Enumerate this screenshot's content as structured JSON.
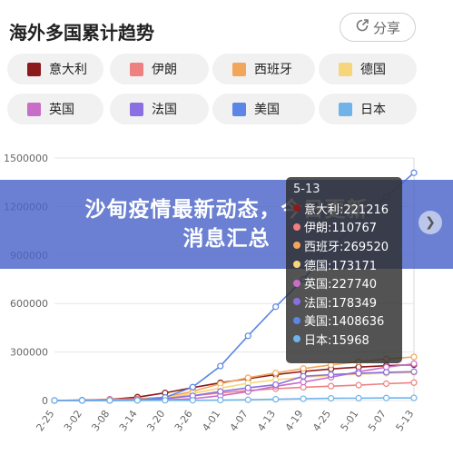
{
  "header": {
    "title": "海外多国累计趋势",
    "share_label": "分享",
    "share_icon": "share-icon"
  },
  "legend": [
    {
      "label": "意大利",
      "color": "#8b1a1a"
    },
    {
      "label": "伊朗",
      "color": "#ef8080"
    },
    {
      "label": "西班牙",
      "color": "#f2a65a"
    },
    {
      "label": "德国",
      "color": "#f7d57a"
    },
    {
      "label": "英国",
      "color": "#c86dc8"
    },
    {
      "label": "法国",
      "color": "#8a6fe0"
    },
    {
      "label": "美国",
      "color": "#5b86e5"
    },
    {
      "label": "日本",
      "color": "#6fb3ea"
    }
  ],
  "banner": {
    "line1": "沙甸疫情最新动态，今日更新",
    "line2": "消息汇总"
  },
  "tooltip": {
    "date": "5-13",
    "rows": [
      {
        "text": "意大利:221216",
        "color": "#8b1a1a"
      },
      {
        "text": "伊朗:110767",
        "color": "#ef8080"
      },
      {
        "text": "西班牙:269520",
        "color": "#f2a65a"
      },
      {
        "text": "德国:173171",
        "color": "#f7d57a"
      },
      {
        "text": "英国:227740",
        "color": "#c86dc8"
      },
      {
        "text": "法国:178349",
        "color": "#8a6fe0"
      },
      {
        "text": "美国:1408636",
        "color": "#5b86e5"
      },
      {
        "text": "日本:15968",
        "color": "#6fb3ea"
      }
    ]
  },
  "chart_data": {
    "type": "line",
    "title": "",
    "xlabel": "",
    "ylabel": "",
    "ylim": [
      0,
      1500000
    ],
    "yticks": [
      0,
      300000,
      600000,
      900000,
      1200000,
      1500000
    ],
    "ytick_labels": [
      "0",
      "300000",
      "600000",
      "900000",
      "1200000",
      "1500000"
    ],
    "categories": [
      "2-25",
      "3-02",
      "3-08",
      "3-14",
      "3-20",
      "3-26",
      "4-01",
      "4-07",
      "4-13",
      "4-19",
      "4-25",
      "5-01",
      "5-07",
      "5-13"
    ],
    "grid": true,
    "series": [
      {
        "name": "意大利",
        "color": "#8b1a1a",
        "values": [
          300,
          2000,
          7000,
          21000,
          47000,
          80000,
          110000,
          135000,
          160000,
          180000,
          195000,
          207000,
          215000,
          221216
        ]
      },
      {
        "name": "伊朗",
        "color": "#ef8080",
        "values": [
          100,
          1500,
          6000,
          12000,
          19000,
          29000,
          47000,
          62000,
          73000,
          82000,
          89000,
          95000,
          104000,
          110767
        ]
      },
      {
        "name": "西班牙",
        "color": "#f2a65a",
        "values": [
          10,
          100,
          600,
          6000,
          20000,
          57000,
          104000,
          141000,
          170000,
          198000,
          220000,
          240000,
          257000,
          269520
        ]
      },
      {
        "name": "德国",
        "color": "#f7d57a",
        "values": [
          20,
          150,
          900,
          4500,
          18000,
          44000,
          77000,
          107000,
          128000,
          143000,
          155000,
          163000,
          168000,
          173171
        ]
      },
      {
        "name": "英国",
        "color": "#c86dc8",
        "values": [
          10,
          40,
          270,
          1100,
          4000,
          11000,
          30000,
          55000,
          88000,
          114000,
          144000,
          178000,
          206000,
          227740
        ]
      },
      {
        "name": "法国",
        "color": "#8a6fe0",
        "values": [
          10,
          200,
          1200,
          4500,
          12000,
          29000,
          56000,
          78000,
          98000,
          150000,
          160000,
          168000,
          175000,
          178349
        ]
      },
      {
        "name": "美国",
        "color": "#5b86e5",
        "values": [
          50,
          100,
          500,
          2700,
          19000,
          83000,
          213000,
          400000,
          580000,
          750000,
          950000,
          1100000,
          1260000,
          1408636
        ]
      },
      {
        "name": "日本",
        "color": "#6fb3ea",
        "values": [
          170,
          250,
          500,
          800,
          1000,
          1400,
          2400,
          4300,
          7600,
          10800,
          13400,
          14500,
          15500,
          15968
        ]
      }
    ]
  }
}
